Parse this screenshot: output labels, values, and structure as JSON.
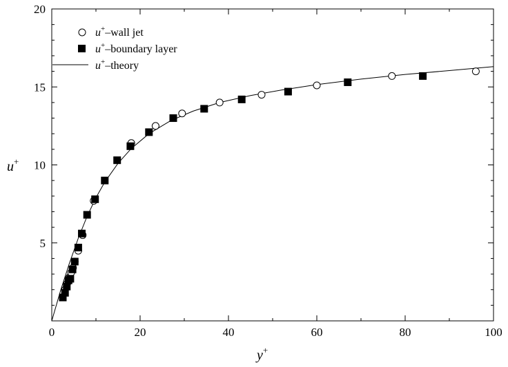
{
  "chart_data": {
    "type": "scatter",
    "xlabel": "y",
    "xlabel_sup": "+",
    "ylabel": "u",
    "ylabel_sup": "+",
    "xlim": [
      0,
      100
    ],
    "ylim": [
      0,
      20
    ],
    "xticks": [
      0,
      20,
      40,
      60,
      80,
      100
    ],
    "yticks": [
      5,
      10,
      15,
      20
    ],
    "grid": false,
    "legend_position": "top-left",
    "series": [
      {
        "name": "u+–wall jet",
        "label_symbol": "u",
        "label_sup": "+",
        "label_rest": "–wall jet",
        "marker": "open-circle",
        "x": [
          2.5,
          3.0,
          3.5,
          4.0,
          4.4,
          4.8,
          5.2,
          6.0,
          7.0,
          9.5,
          18.0,
          23.5,
          29.5,
          38.0,
          47.5,
          60.0,
          77.0,
          96.0
        ],
        "y": [
          1.5,
          2.0,
          2.4,
          2.8,
          3.1,
          3.4,
          3.8,
          4.5,
          5.5,
          7.7,
          11.4,
          12.5,
          13.3,
          14.0,
          14.5,
          15.1,
          15.7,
          16.0
        ]
      },
      {
        "name": "u+–boundary layer",
        "label_symbol": "u",
        "label_sup": "+",
        "label_rest": "–boundary layer",
        "marker": "filled-square",
        "x": [
          2.5,
          3.0,
          3.4,
          3.8,
          4.2,
          4.7,
          5.2,
          6.0,
          6.8,
          8.0,
          9.8,
          12.0,
          14.8,
          17.8,
          22.0,
          27.5,
          34.5,
          43.0,
          53.5,
          67.0,
          84.0
        ],
        "y": [
          1.5,
          1.8,
          2.2,
          2.6,
          2.7,
          3.3,
          3.8,
          4.7,
          5.6,
          6.8,
          7.8,
          9.0,
          10.3,
          11.2,
          12.1,
          13.0,
          13.6,
          14.2,
          14.7,
          15.3,
          15.7
        ]
      },
      {
        "name": "u+–theory",
        "label_symbol": "u",
        "label_sup": "+",
        "label_rest": "–theory",
        "marker": "line",
        "x": [
          0,
          2,
          4,
          6,
          8,
          10,
          12,
          15,
          18,
          22,
          27,
          32,
          38,
          45,
          52,
          60,
          70,
          80,
          90,
          100
        ],
        "y": [
          0,
          1.95,
          3.7,
          5.3,
          6.7,
          7.9,
          8.9,
          10.1,
          11.05,
          12.0,
          12.85,
          13.45,
          14.0,
          14.45,
          14.8,
          15.15,
          15.5,
          15.8,
          16.05,
          16.3
        ]
      }
    ]
  }
}
